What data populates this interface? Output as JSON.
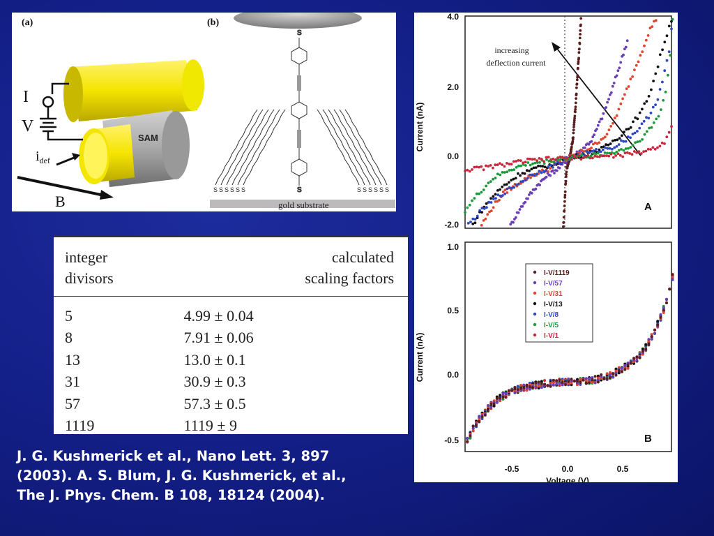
{
  "figure_ab": {
    "label_a": "(a)",
    "label_b": "(b)",
    "label_I": "I",
    "label_V": "V",
    "label_idef": "i",
    "label_idef_sub": "def",
    "label_B": "B",
    "label_SAM": "SAM",
    "label_S": "S",
    "label_substrate": "gold substrate"
  },
  "table": {
    "header_col1_line1": "integer",
    "header_col1_line2": "divisors",
    "header_col2_line1": "calculated",
    "header_col2_line2": "scaling factors",
    "rows": [
      {
        "divisor": "5",
        "factor": "4.99 ± 0.04"
      },
      {
        "divisor": "8",
        "factor": "7.91 ± 0.06"
      },
      {
        "divisor": "13",
        "factor": "13.0 ± 0.1"
      },
      {
        "divisor": "31",
        "factor": "30.9 ± 0.3"
      },
      {
        "divisor": "57",
        "factor": "57.3 ± 0.5"
      },
      {
        "divisor": "1119",
        "factor": "1119 ± 9"
      }
    ]
  },
  "citation": {
    "line1": "J. G. Kushmerick  et al., Nano Lett. 3, 897",
    "line2": "(2003). A. S. Blum, J. G. Kushmerick, et al.,",
    "line3": "The J. Phys. Chem. B 108, 18124 (2004)."
  },
  "chart_data": [
    {
      "type": "scatter",
      "panel_label": "A",
      "ylabel": "Current (nA)",
      "xlabel": "",
      "xlim": [
        -0.95,
        0.92
      ],
      "ylim": [
        -2.0,
        4.0
      ],
      "yticks": [
        "4.0",
        "2.0",
        "0.0",
        "-2.0"
      ],
      "annotation_line1": "increasing",
      "annotation_line2": "deflection current",
      "series": [
        {
          "color": "#5a1e1e",
          "points": [
            [
              -0.06,
              -2.0
            ],
            [
              -0.05,
              -1.4
            ],
            [
              -0.04,
              -0.8
            ],
            [
              -0.03,
              -0.3
            ],
            [
              0.0,
              0.0
            ],
            [
              0.03,
              0.6
            ],
            [
              0.05,
              1.4
            ],
            [
              0.07,
              2.4
            ],
            [
              0.09,
              3.3
            ],
            [
              0.1,
              3.9
            ]
          ]
        },
        {
          "color": "#6a3fb5",
          "points": [
            [
              -0.55,
              -2.0
            ],
            [
              -0.5,
              -1.7
            ],
            [
              -0.4,
              -1.2
            ],
            [
              -0.3,
              -0.8
            ],
            [
              -0.2,
              -0.5
            ],
            [
              -0.1,
              -0.3
            ],
            [
              0.0,
              0.0
            ],
            [
              0.1,
              0.2
            ],
            [
              0.2,
              0.5
            ],
            [
              0.3,
              1.2
            ],
            [
              0.38,
              1.9
            ],
            [
              0.45,
              2.6
            ],
            [
              0.52,
              3.3
            ]
          ]
        },
        {
          "color": "#e0452b",
          "points": [
            [
              -0.8,
              -1.9
            ],
            [
              -0.7,
              -1.4
            ],
            [
              -0.6,
              -1.0
            ],
            [
              -0.5,
              -0.8
            ],
            [
              -0.4,
              -0.6
            ],
            [
              -0.3,
              -0.45
            ],
            [
              -0.2,
              -0.35
            ],
            [
              0.0,
              0.0
            ],
            [
              0.2,
              0.3
            ],
            [
              0.35,
              0.7
            ],
            [
              0.45,
              1.4
            ],
            [
              0.55,
              2.2
            ],
            [
              0.65,
              3.0
            ],
            [
              0.72,
              3.6
            ],
            [
              0.78,
              3.9
            ]
          ]
        },
        {
          "color": "#111111",
          "points": [
            [
              -0.9,
              -2.0
            ],
            [
              -0.8,
              -1.5
            ],
            [
              -0.7,
              -1.1
            ],
            [
              -0.6,
              -0.8
            ],
            [
              -0.45,
              -0.45
            ],
            [
              -0.3,
              -0.3
            ],
            [
              -0.15,
              -0.2
            ],
            [
              0.0,
              0.0
            ],
            [
              0.15,
              0.1
            ],
            [
              0.3,
              0.25
            ],
            [
              0.45,
              0.6
            ],
            [
              0.55,
              0.9
            ],
            [
              0.65,
              1.3
            ],
            [
              0.72,
              1.8
            ],
            [
              0.78,
              2.4
            ],
            [
              0.83,
              3.0
            ],
            [
              0.88,
              3.5
            ],
            [
              0.92,
              3.9
            ]
          ]
        },
        {
          "color": "#2f46c0",
          "points": [
            [
              -0.92,
              -1.9
            ],
            [
              -0.8,
              -1.5
            ],
            [
              -0.65,
              -1.1
            ],
            [
              -0.5,
              -0.8
            ],
            [
              -0.35,
              -0.5
            ],
            [
              -0.2,
              -0.3
            ],
            [
              0.0,
              0.0
            ],
            [
              0.2,
              0.15
            ],
            [
              0.4,
              0.3
            ],
            [
              0.55,
              0.6
            ],
            [
              0.65,
              0.9
            ],
            [
              0.72,
              1.2
            ],
            [
              0.8,
              1.7
            ],
            [
              0.85,
              2.3
            ],
            [
              0.9,
              3.0
            ],
            [
              0.92,
              3.6
            ]
          ]
        },
        {
          "color": "#1a9a3a",
          "points": [
            [
              -0.95,
              -1.5
            ],
            [
              -0.85,
              -1.1
            ],
            [
              -0.7,
              -0.6
            ],
            [
              -0.55,
              -0.35
            ],
            [
              -0.4,
              -0.2
            ],
            [
              -0.2,
              -0.1
            ],
            [
              0.0,
              0.0
            ],
            [
              0.2,
              0.05
            ],
            [
              0.4,
              0.15
            ],
            [
              0.55,
              0.3
            ],
            [
              0.65,
              0.55
            ],
            [
              0.75,
              0.9
            ],
            [
              0.82,
              1.3
            ],
            [
              0.87,
              1.9
            ],
            [
              0.9,
              2.6
            ],
            [
              0.92,
              3.3
            ],
            [
              0.93,
              3.9
            ]
          ]
        },
        {
          "color": "#c8283c",
          "points": [
            [
              -0.95,
              -0.35
            ],
            [
              -0.8,
              -0.3
            ],
            [
              -0.6,
              -0.2
            ],
            [
              -0.4,
              -0.1
            ],
            [
              -0.2,
              -0.05
            ],
            [
              0.0,
              0.0
            ],
            [
              0.2,
              0.02
            ],
            [
              0.4,
              0.05
            ],
            [
              0.6,
              0.12
            ],
            [
              0.75,
              0.25
            ],
            [
              0.85,
              0.4
            ],
            [
              0.92,
              0.9
            ]
          ]
        }
      ]
    },
    {
      "type": "scatter",
      "panel_label": "B",
      "ylabel": "Current (nA)",
      "xlabel": "Voltage (V)",
      "xlim": [
        -0.95,
        0.92
      ],
      "ylim": [
        -0.5,
        1.0
      ],
      "yticks": [
        "1.0",
        "0.5",
        "0.0",
        "-0.5"
      ],
      "xticks": [
        "-0.5",
        "0.0",
        "0.5"
      ],
      "legend_position": "top-left",
      "series": [
        {
          "name": "I-V/1119",
          "color": "#5a1e1e"
        },
        {
          "name": "I-V/57",
          "color": "#6a3fb5"
        },
        {
          "name": "I-V/31",
          "color": "#e0452b"
        },
        {
          "name": "I-V/13",
          "color": "#111111"
        },
        {
          "name": "I-V/8",
          "color": "#2f46c0"
        },
        {
          "name": "I-V/5",
          "color": "#1a9a3a"
        },
        {
          "name": "I-V/1",
          "color": "#c8283c"
        }
      ],
      "collapsed_curve": [
        [
          -0.95,
          -0.45
        ],
        [
          -0.85,
          -0.3
        ],
        [
          -0.75,
          -0.2
        ],
        [
          -0.65,
          -0.12
        ],
        [
          -0.5,
          -0.06
        ],
        [
          -0.35,
          -0.03
        ],
        [
          -0.2,
          -0.01
        ],
        [
          0.0,
          0.0
        ],
        [
          0.2,
          0.01
        ],
        [
          0.35,
          0.04
        ],
        [
          0.45,
          0.08
        ],
        [
          0.55,
          0.13
        ],
        [
          0.62,
          0.18
        ],
        [
          0.7,
          0.26
        ],
        [
          0.78,
          0.38
        ],
        [
          0.85,
          0.52
        ],
        [
          0.9,
          0.65
        ],
        [
          0.93,
          0.75
        ]
      ]
    }
  ]
}
